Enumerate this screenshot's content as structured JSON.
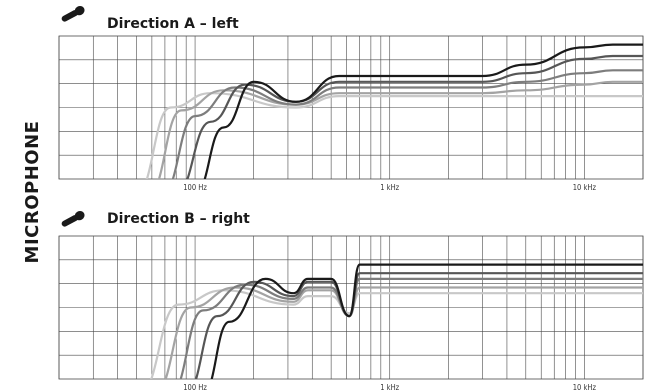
{
  "side_label": "MICROPHONE",
  "chart_data": [
    {
      "type": "line",
      "title": "Direction A – left",
      "icon": "microphone-icon",
      "x_scale": "log",
      "xlim": [
        20,
        20000
      ],
      "x_ticks": [
        {
          "value": 100,
          "label": "100 Hz"
        },
        {
          "value": 1000,
          "label": "1 kHz"
        },
        {
          "value": 10000,
          "label": "10 kHz"
        }
      ],
      "ylim": [
        -30,
        20
      ],
      "grid": true,
      "series": [
        {
          "color": "#1a1a1a",
          "x": [
            100,
            140,
            200,
            330,
            550,
            1000,
            3000,
            5000,
            10000,
            14000,
            20000
          ],
          "y": [
            -35,
            -12,
            4,
            -3,
            6,
            6,
            6,
            10,
            16,
            17,
            17
          ]
        },
        {
          "color": "#565656",
          "x": [
            80,
            120,
            180,
            330,
            550,
            1000,
            3000,
            5000,
            10000,
            14000,
            20000
          ],
          "y": [
            -35,
            -10,
            3,
            -3,
            4,
            4,
            4,
            7,
            12,
            13,
            13
          ]
        },
        {
          "color": "#7d7d7d",
          "x": [
            68,
            100,
            160,
            330,
            550,
            1000,
            3000,
            5000,
            10000,
            14000,
            20000
          ],
          "y": [
            -35,
            -8,
            2,
            -4,
            2,
            2,
            2,
            4,
            7,
            8,
            8
          ]
        },
        {
          "color": "#a3a3a3",
          "x": [
            58,
            85,
            140,
            330,
            550,
            1000,
            3000,
            5000,
            10000,
            14000,
            20000
          ],
          "y": [
            -35,
            -6,
            1,
            -4,
            0,
            0,
            0,
            1,
            3,
            4,
            4
          ]
        },
        {
          "color": "#c8c8c8",
          "x": [
            50,
            75,
            120,
            330,
            550,
            1000,
            3000,
            10000,
            20000
          ],
          "y": [
            -35,
            -5,
            0,
            -5,
            -1,
            -1,
            -1,
            -1,
            -1
          ]
        }
      ]
    },
    {
      "type": "line",
      "title": "Direction B – right",
      "icon": "microphone-icon",
      "x_scale": "log",
      "xlim": [
        20,
        20000
      ],
      "x_ticks": [
        {
          "value": 100,
          "label": "100 Hz"
        },
        {
          "value": 1000,
          "label": "1 kHz"
        },
        {
          "value": 10000,
          "label": "10 kHz"
        }
      ],
      "ylim": [
        -30,
        20
      ],
      "grid": true,
      "series": [
        {
          "color": "#1a1a1a",
          "x": [
            110,
            150,
            230,
            320,
            380,
            500,
            620,
            700,
            1000,
            3000,
            20000
          ],
          "y": [
            -35,
            -10,
            5,
            0,
            5,
            5,
            -8,
            10,
            10,
            10,
            10
          ]
        },
        {
          "color": "#565656",
          "x": [
            90,
            130,
            200,
            320,
            380,
            500,
            620,
            700,
            1000,
            3000,
            20000
          ],
          "y": [
            -35,
            -8,
            4,
            -1,
            4,
            4,
            -8,
            7,
            7,
            7,
            7
          ]
        },
        {
          "color": "#7d7d7d",
          "x": [
            75,
            110,
            180,
            320,
            380,
            500,
            620,
            700,
            1000,
            3000,
            20000
          ],
          "y": [
            -35,
            -6,
            3,
            -2,
            2,
            2,
            -8,
            5,
            5,
            5,
            5
          ]
        },
        {
          "color": "#a3a3a3",
          "x": [
            62,
            95,
            160,
            320,
            380,
            500,
            620,
            700,
            1000,
            3000,
            20000
          ],
          "y": [
            -35,
            -5,
            2,
            -3,
            1,
            1,
            -8,
            2,
            2,
            2,
            2
          ]
        },
        {
          "color": "#c8c8c8",
          "x": [
            52,
            82,
            140,
            320,
            380,
            500,
            620,
            700,
            1000,
            3000,
            20000
          ],
          "y": [
            -35,
            -4,
            1,
            -4,
            -1,
            -1,
            -7,
            0,
            0,
            0,
            0
          ]
        }
      ]
    }
  ]
}
